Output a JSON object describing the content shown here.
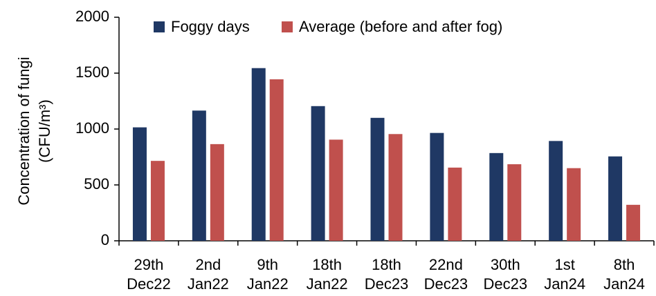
{
  "chart_data": {
    "type": "bar",
    "y_label": [
      "Concentration of fungi",
      "(CFU/m³)"
    ],
    "categories": [
      [
        "29th",
        "Dec22"
      ],
      [
        "2nd",
        "Jan22"
      ],
      [
        "9th",
        "Jan22"
      ],
      [
        "18th",
        "Jan22"
      ],
      [
        "18th",
        "Dec23"
      ],
      [
        "22nd",
        "Dec23"
      ],
      [
        "30th",
        "Dec23"
      ],
      [
        "1st",
        "Jan24"
      ],
      [
        "8th",
        "Jan24"
      ]
    ],
    "series": [
      {
        "name": "Foggy days",
        "color": "#1f3864",
        "values": [
          1015,
          1165,
          1545,
          1205,
          1100,
          965,
          785,
          893,
          755
        ]
      },
      {
        "name": "Average (before and after fog)",
        "color": "#c0504d",
        "values": [
          715,
          865,
          1445,
          905,
          955,
          655,
          685,
          650,
          322
        ]
      }
    ],
    "ylim": [
      0,
      2000
    ],
    "yticks": [
      0,
      500,
      1000,
      1500,
      2000
    ],
    "legend": "top"
  }
}
